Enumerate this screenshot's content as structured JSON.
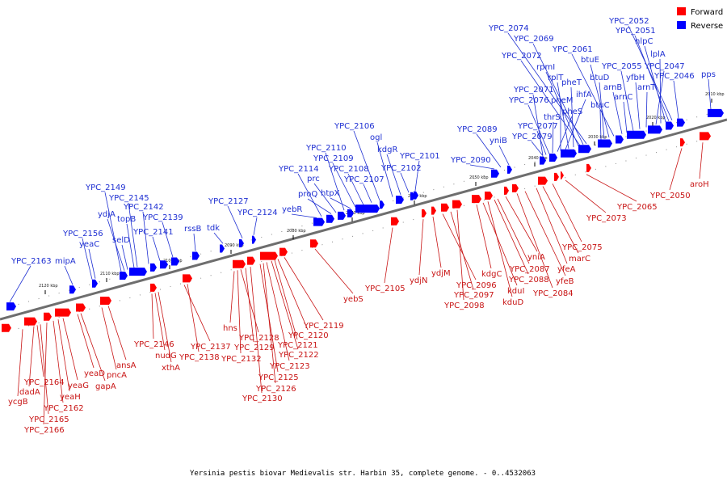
{
  "caption": "Yersinia pestis biovar Medievalis str. Harbin 35, complete genome. - 0..4532063",
  "legend": [
    {
      "name": "Forward",
      "color": "#ff0000"
    },
    {
      "name": "Reverse",
      "color": "#0000ff"
    }
  ],
  "kbp_ticks": [
    "2010 kbp",
    "2020 kbp",
    "2030 kbp",
    "2040 kbp",
    "2050 kbp",
    "2060 kbp",
    "2070 kbp",
    "2080 kbp",
    "2090 kbp",
    "2100 kbp",
    "2110 kbp",
    "2120 kbp"
  ],
  "reverse_genes": [
    "YPC_2163",
    "mipA",
    "YPC_2156",
    "yeaC",
    "YPC_2149",
    "ydjA",
    "selD",
    "topB",
    "YPC_2145",
    "YPC_2142",
    "YPC_2141",
    "YPC_2139",
    "rssB",
    "tdk",
    "YPC_2127",
    "YPC_2124",
    "yebR",
    "YPC_2114",
    "proQ",
    "prc",
    "htpX",
    "YPC_2110",
    "YPC_2109",
    "YPC_2108",
    "YPC_2107",
    "YPC_2106",
    "ogl",
    "kdgR",
    "YPC_2102",
    "YPC_2101",
    "YPC_2090",
    "YPC_2089",
    "yniB",
    "YPC_2079",
    "YPC_2077",
    "thrS",
    "pheS",
    "YPC_2076",
    "pheM",
    "YPC_2071",
    "ihfA",
    "rplT",
    "pheT",
    "rpmI",
    "YPC_2072",
    "YPC_2069",
    "YPC_2074",
    "btuC",
    "btuD",
    "btuE",
    "YPC_2061",
    "arnB",
    "arnC",
    "YPC_2055",
    "yfbH",
    "arnT",
    "YPC_2047",
    "lplA",
    "nlpC",
    "YPC_2051",
    "YPC_2052",
    "YPC_2046",
    "pps"
  ],
  "forward_genes": [
    "ycgB",
    "dadA",
    "YPC_2164",
    "YPC_2165",
    "YPC_2166",
    "YPC_2162",
    "yeaH",
    "yeaG",
    "yeaD",
    "gapA",
    "pncA",
    "ansA",
    "YPC_2146",
    "nudG",
    "xthA",
    "YPC_2137",
    "YPC_2138",
    "hns",
    "YPC_2132",
    "YPC_2128",
    "YPC_2129",
    "YPC_2130",
    "YPC_2125",
    "YPC_2126",
    "YPC_2123",
    "YPC_2122",
    "YPC_2121",
    "YPC_2120",
    "YPC_2119",
    "yebS",
    "YPC_2105",
    "ydjN",
    "ydjM",
    "YPC_2096",
    "YPC_2097",
    "YPC_2098",
    "kdgC",
    "kduI",
    "kduD",
    "YPC_2088",
    "YPC_2087",
    "yniA",
    "YPC_2084",
    "yfeB",
    "yfeA",
    "marC",
    "YPC_2075",
    "YPC_2073",
    "YPC_2065",
    "YPC_2050",
    "aroH"
  ]
}
